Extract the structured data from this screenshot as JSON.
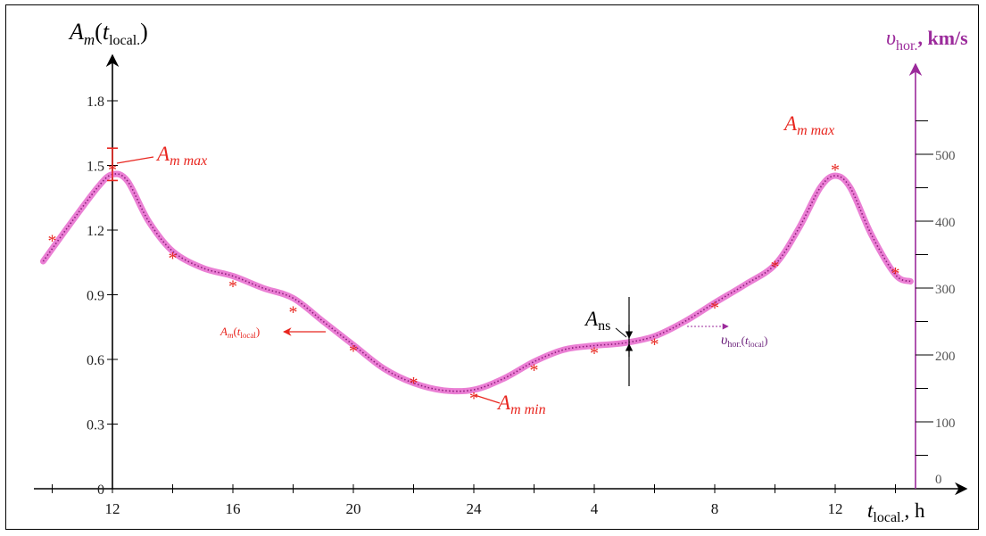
{
  "chart_data": {
    "type": "line",
    "left_axis": {
      "title_main": "A",
      "title_sub": "m",
      "title_arg": "t",
      "title_arg_sub": "local.",
      "ticks": [
        0,
        0.3,
        0.6,
        0.9,
        1.2,
        1.5,
        1.8
      ],
      "tick_labels": [
        "0",
        "0.3",
        "0.6",
        "0.9",
        "1.2",
        "1.5",
        "1.8"
      ],
      "ylim": [
        0,
        1.8
      ]
    },
    "right_axis": {
      "title_main": "υ",
      "title_sub": "hor.",
      "title_unit": ", km/s",
      "ticks": [
        0,
        100,
        200,
        300,
        400,
        500
      ],
      "tick_labels": [
        "0",
        "100",
        "200",
        "300",
        "400",
        "500"
      ],
      "ylim": [
        0,
        500
      ],
      "color": "#9b2a9b"
    },
    "x_axis": {
      "title_main": "t",
      "title_sub": "local.",
      "title_unit": ", h",
      "tick_labels": [
        "12",
        "16",
        "20",
        "24",
        "4",
        "8",
        "12"
      ],
      "tick_positions_hours": [
        12,
        16,
        20,
        24,
        28,
        32,
        36
      ],
      "xlim": [
        9.5,
        38.5
      ]
    },
    "series": [
      {
        "name": "A_m(t_local)",
        "kind": "scatter",
        "marker": "*",
        "color": "#e8261f",
        "x": [
          10,
          12,
          14,
          16,
          18,
          20,
          22,
          24,
          26,
          28,
          30,
          32,
          34,
          36,
          38
        ],
        "y": [
          1.16,
          1.49,
          1.08,
          0.95,
          0.83,
          0.65,
          0.5,
          0.43,
          0.56,
          0.64,
          0.68,
          0.85,
          1.04,
          1.49,
          1.01
        ],
        "error_bar_at_x": 12,
        "error_bar_range": [
          1.43,
          1.58
        ]
      },
      {
        "name": "υ_hor.(t_local)",
        "kind": "line",
        "color": "#ea7fd4",
        "x": [
          9.7,
          10.5,
          11.5,
          12,
          12.5,
          13.2,
          14,
          15,
          16,
          17,
          18,
          19,
          20,
          21,
          22,
          23,
          24,
          25,
          26,
          27,
          28,
          29,
          30,
          31,
          32,
          33,
          34,
          34.8,
          35.5,
          36,
          36.5,
          37.2,
          38,
          38.5
        ],
        "y": [
          340,
          390,
          450,
          470,
          460,
          400,
          355,
          330,
          318,
          300,
          285,
          250,
          215,
          180,
          158,
          147,
          148,
          165,
          190,
          208,
          214,
          218,
          228,
          250,
          278,
          305,
          335,
          390,
          450,
          468,
          450,
          380,
          320,
          310
        ]
      }
    ],
    "annotations": {
      "a_max_left": {
        "main": "A",
        "sub": "m max"
      },
      "a_max_right": {
        "main": "A",
        "sub": "m max"
      },
      "a_min": {
        "main": "A",
        "sub": "m min"
      },
      "a_ns": {
        "main": "A",
        "sub": "ns"
      },
      "series_label_a": {
        "main": "A",
        "sub": "m",
        "arg": "t",
        "arg_sub": "local"
      },
      "series_label_v": {
        "main": "υ",
        "sub": "hor.",
        "arg": "t",
        "arg_sub": "local"
      }
    },
    "colors": {
      "axis_black": "#000000",
      "red": "#e8261f",
      "purple": "#9b2a9b",
      "pink": "#ea7fd4",
      "dotted": "#8c1c7a"
    },
    "grid": false,
    "legend": "none"
  }
}
